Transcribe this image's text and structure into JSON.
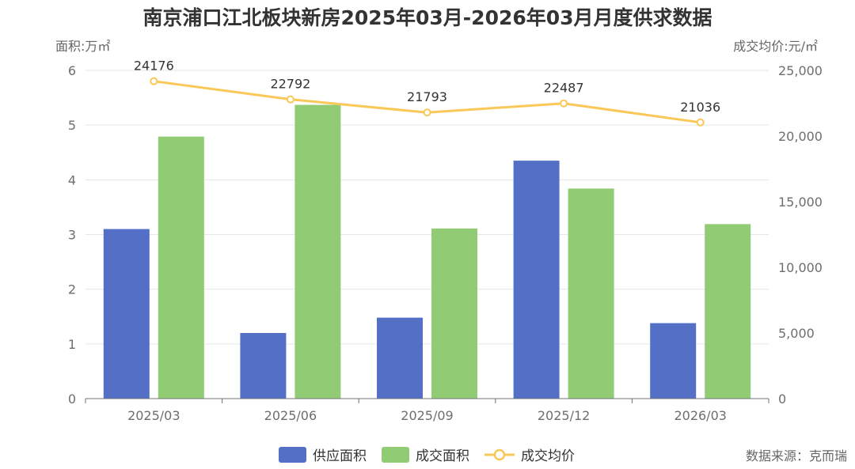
{
  "chart_data": {
    "type": "bar",
    "title": "南京浦口江北板块新房2025年03月-2026年03月月度供求数据",
    "categories": [
      "2025/03",
      "2025/06",
      "2025/09",
      "2025/12",
      "2026/03"
    ],
    "y_left": {
      "label": "面积:万㎡",
      "min": 0,
      "max": 6,
      "ticks": [
        "0",
        "1",
        "2",
        "3",
        "4",
        "5",
        "6"
      ]
    },
    "y_right": {
      "label": "成交均价:元/㎡",
      "min": 0,
      "max": 25000,
      "ticks": [
        "0",
        "5,000",
        "10,000",
        "15,000",
        "20,000",
        "25,000"
      ]
    },
    "series": [
      {
        "name": "供应面积",
        "type": "bar",
        "axis": "left",
        "color": "#5470c6",
        "values": [
          3.1,
          1.2,
          1.48,
          4.35,
          1.38
        ]
      },
      {
        "name": "成交面积",
        "type": "bar",
        "axis": "left",
        "color": "#91cc75",
        "values": [
          4.79,
          5.37,
          3.11,
          3.84,
          3.19
        ]
      },
      {
        "name": "成交均价",
        "type": "line",
        "axis": "right",
        "color": "#fac858",
        "values": [
          24176,
          22792,
          21793,
          22487,
          21036
        ],
        "data_labels": [
          "24176",
          "22792",
          "21793",
          "22487",
          "21036"
        ]
      }
    ],
    "legend_position": "bottom-center",
    "grid": true
  },
  "footer": {
    "source": "数据来源：克而瑞"
  }
}
